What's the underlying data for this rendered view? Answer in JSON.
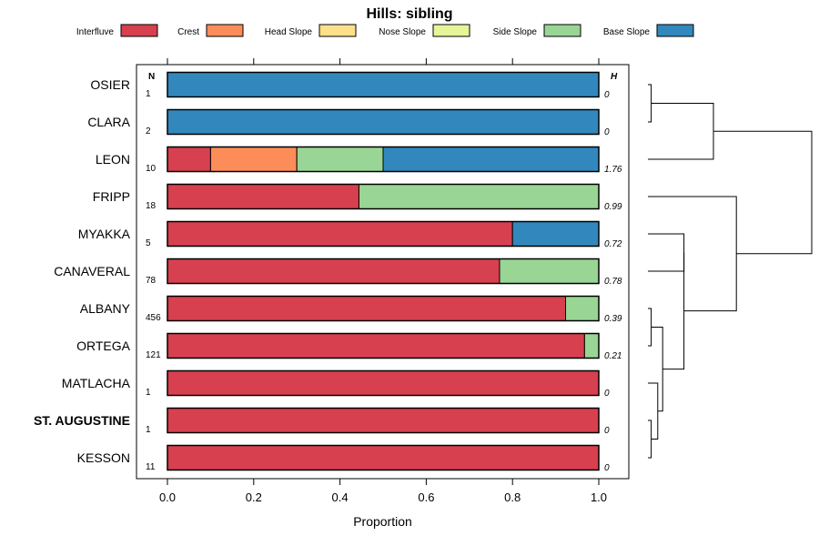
{
  "chart_data": {
    "type": "bar",
    "orientation": "horizontal",
    "stacked": true,
    "title": "Hills: sibling",
    "xlabel": "Proportion",
    "xlim": [
      0,
      1
    ],
    "xticks": [
      0.0,
      0.2,
      0.4,
      0.6,
      0.8,
      1.0
    ],
    "xtick_labels": [
      "0.0",
      "0.2",
      "0.4",
      "0.6",
      "0.8",
      "1.0"
    ],
    "n_header": "N",
    "h_header": "H",
    "legend": [
      {
        "name": "Interfluve",
        "color": "#d7404f"
      },
      {
        "name": "Crest",
        "color": "#fc8d59"
      },
      {
        "name": "Head Slope",
        "color": "#fee08b"
      },
      {
        "name": "Nose Slope",
        "color": "#e6f598"
      },
      {
        "name": "Side Slope",
        "color": "#99d594"
      },
      {
        "name": "Base Slope",
        "color": "#3288bd"
      }
    ],
    "categories": [
      "OSIER",
      "CLARA",
      "LEON",
      "FRIPP",
      "MYAKKA",
      "CANAVERAL",
      "ALBANY",
      "ORTEGA",
      "MATLACHA",
      "ST. AUGUSTINE",
      "KESSON"
    ],
    "bold_category": "ST. AUGUSTINE",
    "n": [
      "1",
      "2",
      "10",
      "18",
      "5",
      "78",
      "456",
      "121",
      "1",
      "1",
      "11"
    ],
    "h": [
      "0",
      "0",
      "1.76",
      "0.99",
      "0.72",
      "0.78",
      "0.39",
      "0.21",
      "0",
      "0",
      "0"
    ],
    "series": [
      {
        "name": "Interfluve",
        "values": [
          0,
          0,
          0.1,
          0.444,
          0.8,
          0.77,
          0.923,
          0.967,
          1,
          1,
          1
        ]
      },
      {
        "name": "Crest",
        "values": [
          0,
          0,
          0.2,
          0,
          0,
          0,
          0,
          0,
          0,
          0,
          0
        ]
      },
      {
        "name": "Head Slope",
        "values": [
          0,
          0,
          0,
          0,
          0,
          0,
          0,
          0,
          0,
          0,
          0
        ]
      },
      {
        "name": "Nose Slope",
        "values": [
          0,
          0,
          0,
          0,
          0,
          0,
          0,
          0,
          0,
          0,
          0
        ]
      },
      {
        "name": "Side Slope",
        "values": [
          0,
          0,
          0.2,
          0.556,
          0,
          0.23,
          0.077,
          0.033,
          0,
          0,
          0
        ]
      },
      {
        "name": "Base Slope",
        "values": [
          1,
          1,
          0.5,
          0,
          0.2,
          0,
          0,
          0,
          0,
          0,
          0
        ]
      }
    ],
    "dendrogram": {
      "leaf_order": [
        "OSIER",
        "CLARA",
        "LEON",
        "FRIPP",
        "MYAKKA",
        "CANAVERAL",
        "ALBANY",
        "ORTEGA",
        "MATLACHA",
        "ST. AUGUSTINE",
        "KESSON"
      ],
      "merges": [
        {
          "a": "OSIER",
          "b": "CLARA",
          "height": 0.02
        },
        {
          "a": "ALBANY",
          "b": "ORTEGA",
          "height": 0.02
        },
        {
          "a": "ST. AUGUSTINE",
          "b": "KESSON",
          "height": 0.02
        },
        {
          "a": "MATLACHA",
          "b": "m3",
          "height": 0.06
        },
        {
          "a": "m2",
          "b": "m4",
          "height": 0.09
        },
        {
          "a": "m1",
          "b": "LEON",
          "height": 0.4
        },
        {
          "a": "MYAKKA",
          "b": "CANAVERAL",
          "height": 0.22
        },
        {
          "a": "m7",
          "b": "m5",
          "height": 0.22
        },
        {
          "a": "FRIPP",
          "b": "m8",
          "height": 0.54
        },
        {
          "a": "m6",
          "b": "m9",
          "height": 1.0
        }
      ]
    }
  }
}
